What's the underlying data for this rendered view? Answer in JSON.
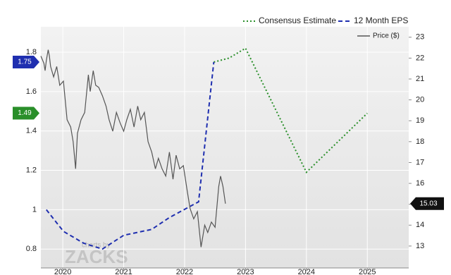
{
  "chart_data": {
    "type": "line",
    "xlim": [
      2019.64,
      2025.68
    ],
    "xticks": [
      2020,
      2021,
      2022,
      2023,
      2024,
      2025
    ],
    "ylim": [
      0.704,
      1.929
    ],
    "yticks": [
      0.8,
      1,
      1.2,
      1.4,
      1.6,
      1.8
    ],
    "y2lim": [
      11.95,
      23.5
    ],
    "y2ticks": [
      13,
      14,
      15,
      16,
      17,
      18,
      19,
      20,
      21,
      22,
      23
    ],
    "grid": true,
    "watermark": {
      "prefix": "charts by",
      "brand": "ZACKS"
    },
    "series": [
      {
        "name": "Consensus Estimate",
        "color": "#2a8f2a",
        "style": "dotted",
        "x": [
          2022.48,
          2022.73,
          2023.0,
          2024.0,
          2025.0
        ],
        "values": [
          1.75,
          1.77,
          1.82,
          1.19,
          1.49
        ]
      },
      {
        "name": "12 Month EPS",
        "color": "#1f2fb0",
        "style": "dashed",
        "x": [
          2019.73,
          2020.01,
          2020.34,
          2020.65,
          2021.0,
          2021.46,
          2021.75,
          2022.23,
          2022.48
        ],
        "values": [
          1.0,
          0.89,
          0.83,
          0.8,
          0.87,
          0.9,
          0.96,
          1.04,
          1.75
        ]
      },
      {
        "name": "Price ($)",
        "color": "#555555",
        "style": "solid",
        "axis": "y2",
        "x": [
          2019.64,
          2019.69,
          2019.71,
          2019.73,
          2019.76,
          2019.78,
          2019.8,
          2019.85,
          2019.9,
          2019.95,
          2020.01,
          2020.07,
          2020.13,
          2020.17,
          2020.21,
          2020.24,
          2020.3,
          2020.36,
          2020.42,
          2020.45,
          2020.5,
          2020.54,
          2020.59,
          2020.65,
          2020.71,
          2020.76,
          2020.82,
          2020.88,
          2020.94,
          2021.0,
          2021.05,
          2021.11,
          2021.17,
          2021.23,
          2021.28,
          2021.34,
          2021.4,
          2021.46,
          2021.52,
          2021.57,
          2021.63,
          2021.69,
          2021.75,
          2021.81,
          2021.86,
          2021.92,
          2021.98,
          2022.04,
          2022.09,
          2022.15,
          2022.21,
          2022.27,
          2022.33,
          2022.38,
          2022.44,
          2022.5,
          2022.56,
          2022.59,
          2022.63,
          2022.67
        ],
        "values": [
          22.1,
          21.75,
          21.4,
          21.9,
          22.4,
          22.1,
          21.6,
          21.1,
          21.6,
          20.7,
          20.9,
          19.05,
          18.7,
          18.0,
          16.7,
          18.4,
          19.05,
          19.4,
          21.2,
          20.4,
          21.4,
          20.7,
          20.6,
          20.2,
          19.7,
          19.05,
          18.5,
          19.4,
          18.9,
          18.5,
          19.05,
          19.55,
          18.7,
          19.7,
          19.05,
          19.4,
          18.0,
          17.5,
          16.7,
          17.2,
          16.7,
          16.35,
          17.5,
          16.2,
          17.35,
          16.7,
          16.85,
          15.7,
          14.8,
          14.3,
          14.65,
          12.95,
          14.0,
          13.65,
          14.15,
          13.9,
          15.85,
          16.35,
          15.85,
          15.03
        ]
      }
    ]
  }
}
